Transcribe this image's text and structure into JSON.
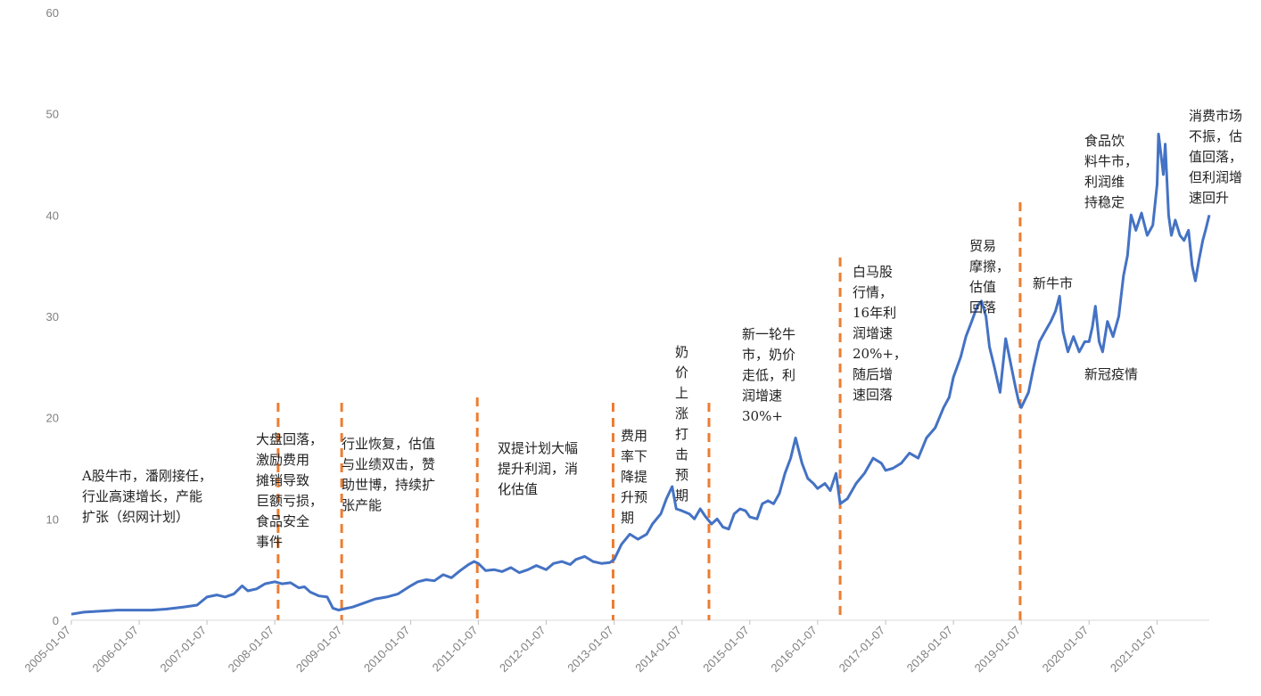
{
  "chart_data": {
    "type": "line",
    "title": "",
    "xlabel": "",
    "ylabel": "",
    "ylim": [
      0,
      60
    ],
    "yticks": [
      0,
      10,
      20,
      30,
      40,
      50,
      60
    ],
    "xlim": [
      "2005-01-07",
      "2021-10-15"
    ],
    "xticks": [
      "2005-01-07",
      "2006-01-07",
      "2007-01-07",
      "2008-01-07",
      "2009-01-07",
      "2010-01-07",
      "2011-01-07",
      "2012-01-07",
      "2013-01-07",
      "2014-01-07",
      "2015-01-07",
      "2016-01-07",
      "2017-01-07",
      "2018-01-07",
      "2019-01-07",
      "2020-01-07",
      "2021-01-07"
    ],
    "grid": false,
    "legend": "none",
    "line_color": "#4472c4",
    "divider_color": "#ed7d31",
    "series": [
      {
        "points": [
          [
            "2005-01-07",
            0.6
          ],
          [
            "2005-03-15",
            0.8
          ],
          [
            "2005-06-15",
            0.9
          ],
          [
            "2005-09-15",
            1.0
          ],
          [
            "2005-12-15",
            1.0
          ],
          [
            "2006-03-15",
            1.0
          ],
          [
            "2006-06-01",
            1.1
          ],
          [
            "2006-09-01",
            1.3
          ],
          [
            "2006-11-15",
            1.5
          ],
          [
            "2007-01-07",
            2.3
          ],
          [
            "2007-03-01",
            2.5
          ],
          [
            "2007-04-15",
            2.3
          ],
          [
            "2007-06-01",
            2.6
          ],
          [
            "2007-07-15",
            3.4
          ],
          [
            "2007-08-15",
            2.9
          ],
          [
            "2007-10-01",
            3.1
          ],
          [
            "2007-11-15",
            3.6
          ],
          [
            "2008-01-07",
            3.8
          ],
          [
            "2008-02-15",
            3.6
          ],
          [
            "2008-04-01",
            3.7
          ],
          [
            "2008-05-15",
            3.2
          ],
          [
            "2008-06-15",
            3.3
          ],
          [
            "2008-07-15",
            2.8
          ],
          [
            "2008-09-01",
            2.4
          ],
          [
            "2008-10-15",
            2.3
          ],
          [
            "2008-11-15",
            1.2
          ],
          [
            "2008-12-15",
            1.0
          ],
          [
            "2009-01-07",
            1.1
          ],
          [
            "2009-03-01",
            1.3
          ],
          [
            "2009-05-01",
            1.7
          ],
          [
            "2009-07-01",
            2.1
          ],
          [
            "2009-09-01",
            2.3
          ],
          [
            "2009-11-01",
            2.6
          ],
          [
            "2010-01-07",
            3.4
          ],
          [
            "2010-02-15",
            3.8
          ],
          [
            "2010-04-01",
            4.0
          ],
          [
            "2010-05-15",
            3.9
          ],
          [
            "2010-07-01",
            4.5
          ],
          [
            "2010-08-15",
            4.2
          ],
          [
            "2010-10-01",
            4.9
          ],
          [
            "2010-11-15",
            5.5
          ],
          [
            "2010-12-15",
            5.8
          ],
          [
            "2011-01-07",
            5.6
          ],
          [
            "2011-02-15",
            4.9
          ],
          [
            "2011-04-01",
            5.0
          ],
          [
            "2011-05-15",
            4.8
          ],
          [
            "2011-07-01",
            5.2
          ],
          [
            "2011-08-15",
            4.7
          ],
          [
            "2011-10-01",
            5.0
          ],
          [
            "2011-11-15",
            5.4
          ],
          [
            "2012-01-07",
            5.0
          ],
          [
            "2012-02-15",
            5.6
          ],
          [
            "2012-04-01",
            5.8
          ],
          [
            "2012-05-15",
            5.5
          ],
          [
            "2012-06-15",
            6.0
          ],
          [
            "2012-08-01",
            6.3
          ],
          [
            "2012-09-15",
            5.8
          ],
          [
            "2012-11-01",
            5.6
          ],
          [
            "2012-12-15",
            5.7
          ],
          [
            "2013-01-07",
            6.0
          ],
          [
            "2013-02-15",
            7.5
          ],
          [
            "2013-04-01",
            8.5
          ],
          [
            "2013-05-15",
            8.0
          ],
          [
            "2013-07-01",
            8.5
          ],
          [
            "2013-08-01",
            9.5
          ],
          [
            "2013-09-15",
            10.5
          ],
          [
            "2013-10-15",
            12.0
          ],
          [
            "2013-11-15",
            13.2
          ],
          [
            "2013-12-07",
            11.0
          ],
          [
            "2014-01-07",
            10.8
          ],
          [
            "2014-02-15",
            10.5
          ],
          [
            "2014-03-15",
            10.0
          ],
          [
            "2014-04-15",
            11.0
          ],
          [
            "2014-05-15",
            10.2
          ],
          [
            "2014-06-15",
            9.5
          ],
          [
            "2014-07-15",
            10.0
          ],
          [
            "2014-08-15",
            9.2
          ],
          [
            "2014-09-15",
            9.0
          ],
          [
            "2014-10-15",
            10.5
          ],
          [
            "2014-11-15",
            11.0
          ],
          [
            "2014-12-15",
            10.8
          ],
          [
            "2015-01-07",
            10.2
          ],
          [
            "2015-02-15",
            10.0
          ],
          [
            "2015-03-15",
            11.5
          ],
          [
            "2015-04-15",
            11.8
          ],
          [
            "2015-05-15",
            11.5
          ],
          [
            "2015-06-15",
            12.5
          ],
          [
            "2015-07-15",
            14.5
          ],
          [
            "2015-08-15",
            16.0
          ],
          [
            "2015-09-10",
            18.0
          ],
          [
            "2015-10-15",
            15.5
          ],
          [
            "2015-11-15",
            14.0
          ],
          [
            "2015-12-15",
            13.5
          ],
          [
            "2016-01-07",
            13.0
          ],
          [
            "2016-02-15",
            13.5
          ],
          [
            "2016-03-15",
            12.8
          ],
          [
            "2016-04-15",
            14.5
          ],
          [
            "2016-05-07",
            11.5
          ],
          [
            "2016-06-15",
            12.0
          ],
          [
            "2016-08-01",
            13.5
          ],
          [
            "2016-09-15",
            14.5
          ],
          [
            "2016-11-01",
            16.0
          ],
          [
            "2016-12-15",
            15.5
          ],
          [
            "2017-01-07",
            14.8
          ],
          [
            "2017-02-15",
            15.0
          ],
          [
            "2017-04-01",
            15.5
          ],
          [
            "2017-05-15",
            16.5
          ],
          [
            "2017-07-01",
            16.0
          ],
          [
            "2017-08-15",
            18.0
          ],
          [
            "2017-10-01",
            19.0
          ],
          [
            "2017-11-15",
            21.0
          ],
          [
            "2017-12-15",
            22.0
          ],
          [
            "2018-01-07",
            24.0
          ],
          [
            "2018-02-15",
            26.0
          ],
          [
            "2018-03-15",
            28.0
          ],
          [
            "2018-04-15",
            29.5
          ],
          [
            "2018-05-15",
            31.0
          ],
          [
            "2018-06-07",
            31.5
          ],
          [
            "2018-07-01",
            30.0
          ],
          [
            "2018-07-20",
            27.0
          ],
          [
            "2018-08-15",
            25.0
          ],
          [
            "2018-09-15",
            22.5
          ],
          [
            "2018-10-15",
            27.8
          ],
          [
            "2018-11-15",
            25.0
          ],
          [
            "2018-12-07",
            23.0
          ],
          [
            "2018-12-25",
            21.5
          ],
          [
            "2019-01-07",
            21.0
          ],
          [
            "2019-02-15",
            22.5
          ],
          [
            "2019-03-15",
            25.0
          ],
          [
            "2019-04-15",
            27.5
          ],
          [
            "2019-05-15",
            28.5
          ],
          [
            "2019-06-15",
            29.5
          ],
          [
            "2019-07-10",
            30.5
          ],
          [
            "2019-08-01",
            32.0
          ],
          [
            "2019-08-20",
            28.5
          ],
          [
            "2019-09-15",
            26.5
          ],
          [
            "2019-10-15",
            28.0
          ],
          [
            "2019-11-15",
            26.5
          ],
          [
            "2019-12-15",
            27.5
          ],
          [
            "2020-01-07",
            27.5
          ],
          [
            "2020-01-25",
            29.0
          ],
          [
            "2020-02-10",
            31.0
          ],
          [
            "2020-03-01",
            27.5
          ],
          [
            "2020-03-20",
            26.5
          ],
          [
            "2020-04-15",
            29.5
          ],
          [
            "2020-05-15",
            28.0
          ],
          [
            "2020-06-15",
            30.0
          ],
          [
            "2020-07-10",
            34.0
          ],
          [
            "2020-08-01",
            36.0
          ],
          [
            "2020-08-20",
            40.0
          ],
          [
            "2020-09-15",
            38.5
          ],
          [
            "2020-10-15",
            40.2
          ],
          [
            "2020-11-15",
            38.0
          ],
          [
            "2020-12-15",
            39.0
          ],
          [
            "2021-01-07",
            43.0
          ],
          [
            "2021-01-15",
            48.0
          ],
          [
            "2021-02-10",
            44.0
          ],
          [
            "2021-02-20",
            47.0
          ],
          [
            "2021-03-10",
            40.0
          ],
          [
            "2021-03-25",
            38.0
          ],
          [
            "2021-04-15",
            39.5
          ],
          [
            "2021-05-10",
            38.0
          ],
          [
            "2021-06-01",
            37.5
          ],
          [
            "2021-06-25",
            38.5
          ],
          [
            "2021-07-15",
            35.0
          ],
          [
            "2021-08-01",
            33.5
          ],
          [
            "2021-08-20",
            35.5
          ],
          [
            "2021-09-10",
            37.5
          ],
          [
            "2021-09-25",
            38.5
          ],
          [
            "2021-10-15",
            40.0
          ]
        ]
      }
    ],
    "dividers": [
      "2008-01-25",
      "2009-01-01",
      "2011-01-01",
      "2013-01-01",
      "2014-06-01",
      "2016-05-07",
      "2019-01-01"
    ],
    "annotations": [
      {
        "lines": [
          "A股牛市，潘刚接任，",
          "行业高速增长，产能",
          "扩张（织网计划）"
        ]
      },
      {
        "lines": [
          "大盘回落，",
          "激励费用",
          "摊销导致",
          "巨额亏损，",
          "食品安全",
          "事件"
        ]
      },
      {
        "lines": [
          "行业恢复，估值",
          "与业绩双击，赞",
          "助世博，持续扩",
          "张产能"
        ]
      },
      {
        "lines": [
          "双提计划大幅",
          "提升利润，消",
          "化估值"
        ]
      },
      {
        "lines": [
          "费用",
          "率下",
          "降提",
          "升预",
          "期"
        ]
      },
      {
        "lines": [
          "奶",
          "价",
          "上",
          "涨",
          "打",
          "击",
          "预",
          "期"
        ]
      },
      {
        "lines": [
          "新一轮牛",
          "市，奶价",
          "走低，利",
          "润增速",
          "30%+"
        ]
      },
      {
        "lines": [
          "白马股",
          "行情，",
          "16年利",
          "润增速",
          "20%+，",
          "随后增",
          "速回落"
        ]
      },
      {
        "lines": [
          "贸易",
          "摩擦，",
          "估值",
          "回落"
        ]
      },
      {
        "lines": [
          "新牛市"
        ]
      },
      {
        "lines": [
          "新冠疫情"
        ]
      },
      {
        "lines": [
          "食品饮",
          "料牛市，",
          "利润维",
          "持稳定"
        ]
      },
      {
        "lines": [
          "消费市场",
          "不振，估",
          "值回落，",
          "但利润增",
          "速回升"
        ]
      }
    ]
  }
}
